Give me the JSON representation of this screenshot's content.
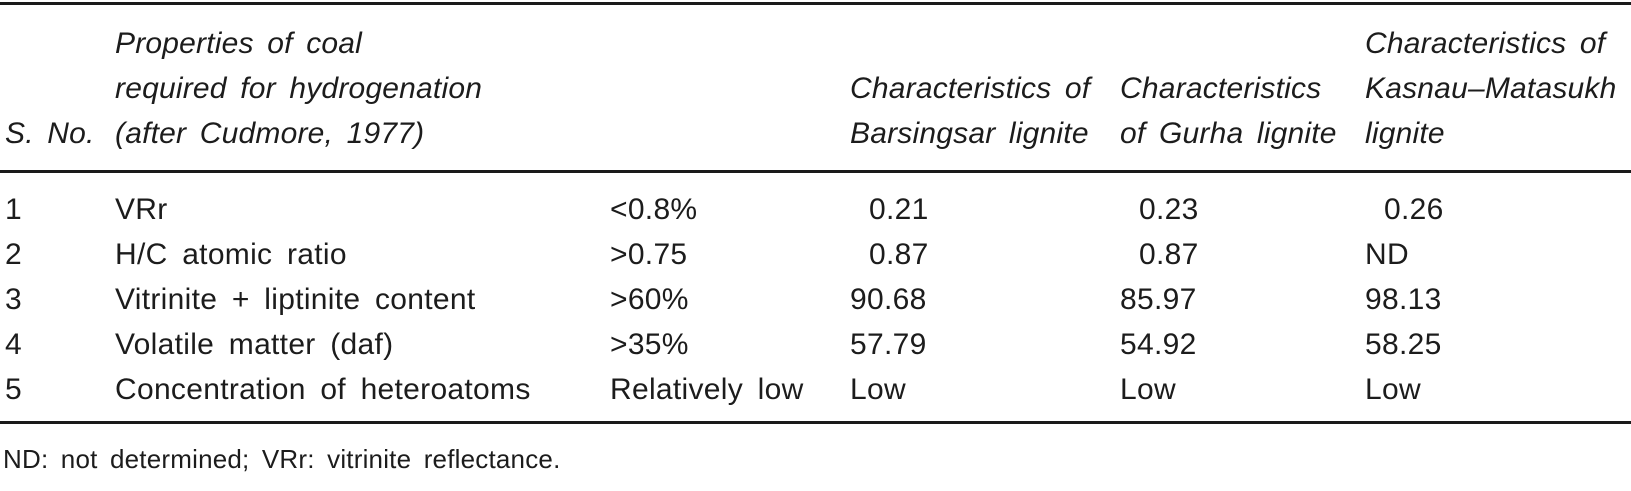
{
  "table": {
    "header": {
      "sno": "S. No.",
      "property": "Properties of coal\nrequired for hydrogenation\n(after Cudmore, 1977)",
      "criteria": "",
      "barsingsar": "Characteristics of\nBarsingsar lignite",
      "gurha": "Characteristics\nof Gurha lignite",
      "kasnau": "Characteristics of\nKasnau–Matasukh\nlignite"
    },
    "rows": [
      {
        "sno": "1",
        "property": "VRr",
        "criteria": "<0.8%",
        "barsingsar": "0.21",
        "gurha": "0.23",
        "kasnau": "0.26"
      },
      {
        "sno": "2",
        "property": "H/C atomic ratio",
        "criteria": ">0.75",
        "barsingsar": "0.87",
        "gurha": "0.87",
        "kasnau": "ND"
      },
      {
        "sno": "3",
        "property": "Vitrinite + liptinite content",
        "criteria": ">60%",
        "barsingsar": "90.68",
        "gurha": "85.97",
        "kasnau": "98.13"
      },
      {
        "sno": "4",
        "property": "Volatile matter (daf)",
        "criteria": ">35%",
        "barsingsar": "57.79",
        "gurha": "54.92",
        "kasnau": "58.25"
      },
      {
        "sno": "5",
        "property": "Concentration of heteroatoms",
        "criteria": "Relatively low",
        "barsingsar": "Low",
        "gurha": "Low",
        "kasnau": "Low"
      }
    ],
    "footnote": "ND: not determined; VRr: vitrinite reflectance."
  }
}
